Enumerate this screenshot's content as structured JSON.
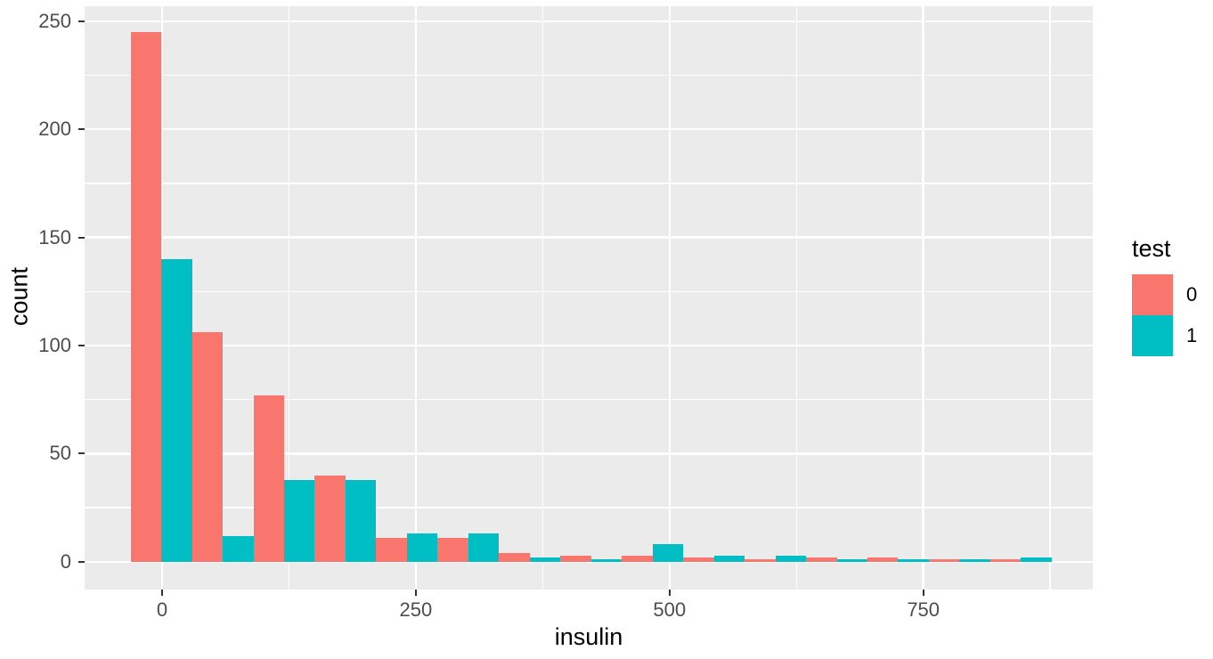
{
  "chart_data": {
    "type": "bar",
    "subtype": "dodged-histogram",
    "title": "",
    "xlabel": "insulin",
    "ylabel": "count",
    "x_ticks": [
      0,
      250,
      500,
      750
    ],
    "y_ticks": [
      0,
      50,
      100,
      150,
      200,
      250
    ],
    "x_minor_ticks": [
      125,
      375,
      625,
      875
    ],
    "y_minor_ticks": [
      25,
      75,
      125,
      175,
      225
    ],
    "x_domain": [
      -76.3,
      917
    ],
    "y_domain": [
      -12.8,
      256.9
    ],
    "bin_start": -31,
    "bin_width": 60.5,
    "series": [
      {
        "name": "0",
        "color": "#F8766D",
        "counts": [
          245,
          106,
          77,
          40,
          11,
          11,
          4,
          3,
          3,
          2,
          1,
          2,
          2,
          1,
          1
        ]
      },
      {
        "name": "1",
        "color": "#00BFC4",
        "counts": [
          140,
          12,
          38,
          38,
          13,
          13,
          2,
          1,
          8,
          3,
          3,
          1,
          1,
          1,
          2
        ]
      }
    ],
    "legend": {
      "title": "test",
      "position": "right",
      "entries": [
        {
          "label": "0",
          "color": "#F8766D"
        },
        {
          "label": "1",
          "color": "#00BFC4"
        }
      ]
    },
    "style": {
      "panel_background": "#EBEBEB",
      "grid_color": "#FFFFFF",
      "tick_mark_color": "#333333",
      "tick_label_color": "#4D4D4D",
      "axis_title_color": "#000000"
    }
  }
}
